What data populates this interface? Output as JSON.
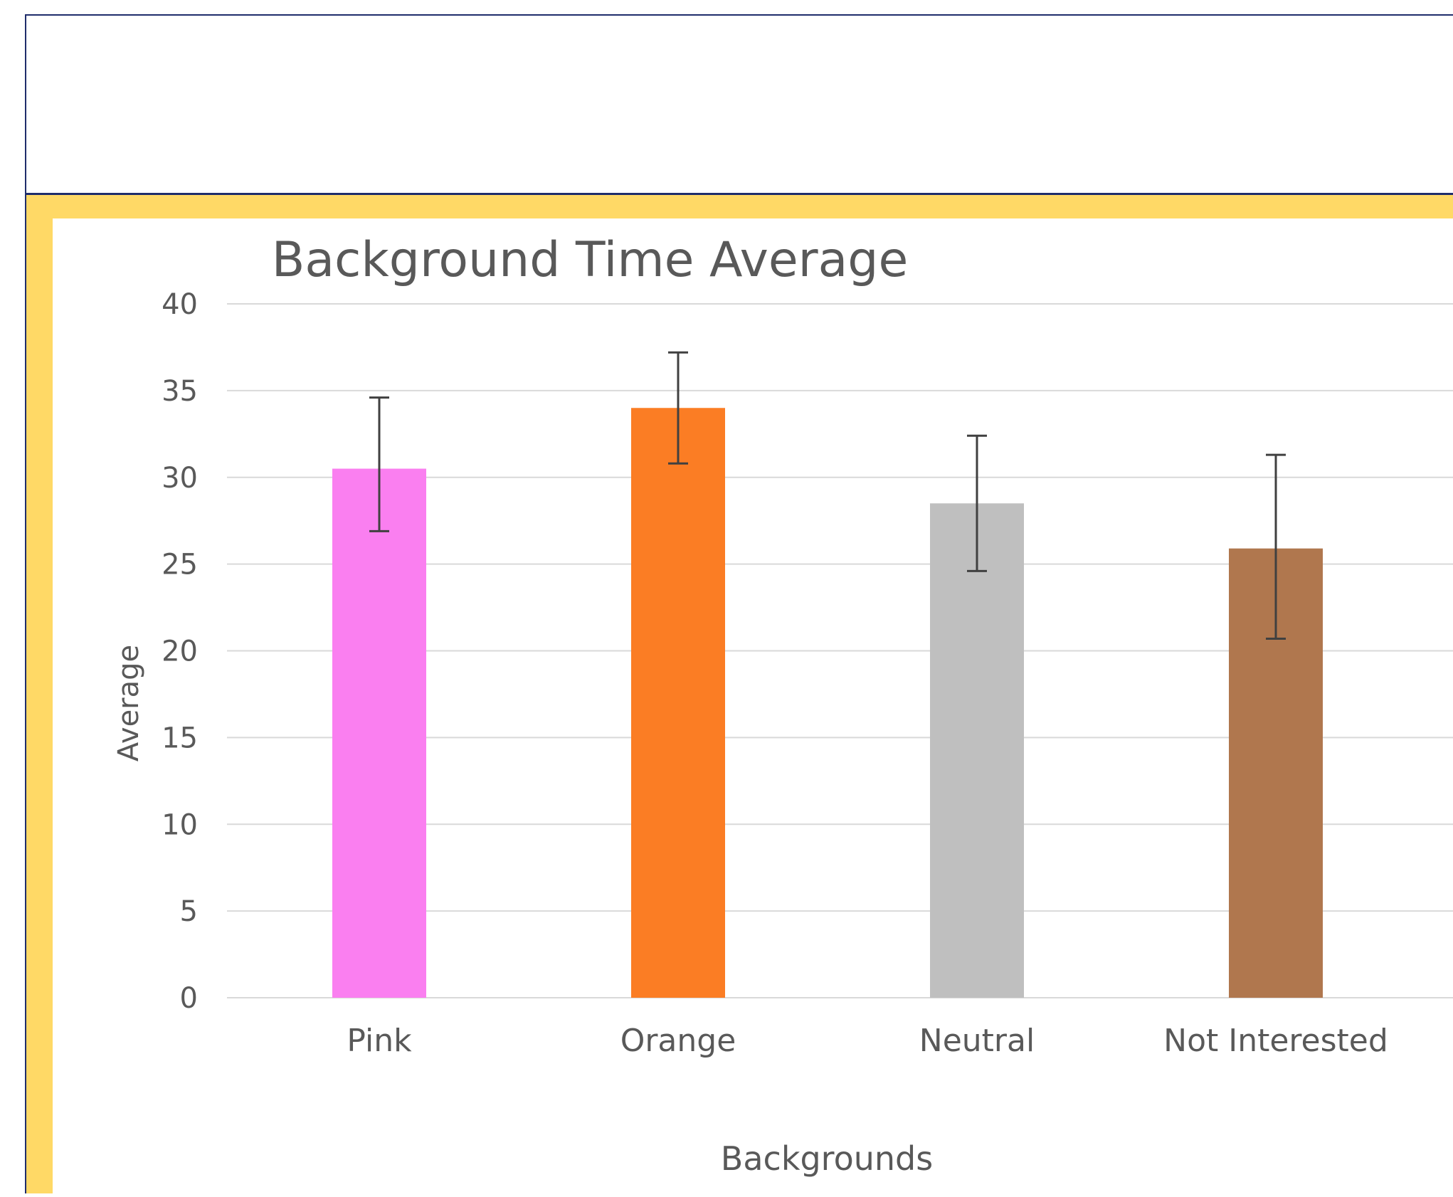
{
  "chart_data": {
    "type": "bar",
    "title": "Background Time Average",
    "xlabel": "Backgrounds",
    "ylabel": "Average",
    "ylim": [
      0,
      40
    ],
    "yticks": [
      0,
      5,
      10,
      15,
      20,
      25,
      30,
      35,
      40
    ],
    "grid": true,
    "categories": [
      "Pink",
      "Orange",
      "Neutral",
      "Not Interested"
    ],
    "values": [
      30.5,
      34.0,
      28.5,
      25.9
    ],
    "error_low": [
      26.9,
      30.8,
      24.6,
      20.7
    ],
    "error_high": [
      34.6,
      37.2,
      32.4,
      31.3
    ],
    "colors": [
      "#fa7ff0",
      "#fb7d24",
      "#bfbfbf",
      "#b0774e"
    ]
  }
}
